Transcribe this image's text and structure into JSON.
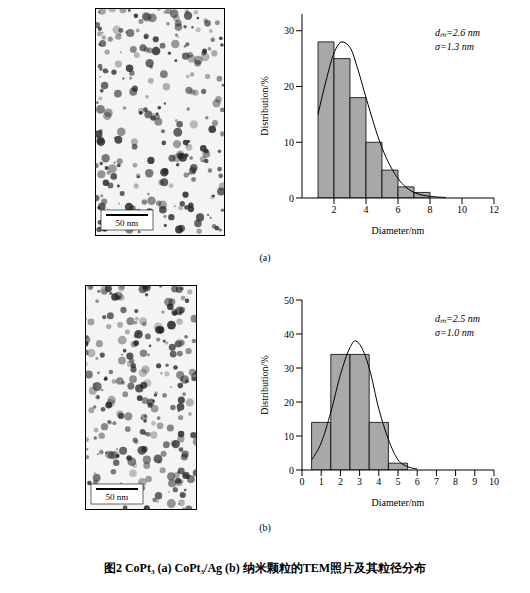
{
  "caption": "图2 CoPt₃ (a) CoPt₃/Ag (b) 纳米颗粒的TEM照片及其粒径分布",
  "chart_data": [
    {
      "type": "histogram",
      "label": "(a)",
      "xlabel": "Diameter/nm",
      "ylabel": "Distribution/%",
      "annotations": [
        "dₘ=2.6 nm",
        "σ=1.3 nm"
      ],
      "image_scale_bar": "50 nm",
      "bins": [
        1,
        2,
        3,
        4,
        5,
        6,
        7,
        8
      ],
      "counts": [
        28,
        25,
        18,
        10,
        5,
        2,
        1
      ],
      "fit": {
        "x": [
          1,
          1.5,
          2,
          2.5,
          3,
          3.5,
          4,
          5,
          6,
          7,
          8,
          9
        ],
        "values": [
          15,
          21,
          26,
          28,
          27,
          23,
          18,
          9,
          3.5,
          1,
          0.3,
          0.1
        ]
      },
      "xlim": [
        0,
        12
      ],
      "xticks": [
        2,
        4,
        6,
        8,
        10,
        12
      ],
      "ylim": [
        0,
        33
      ],
      "yticks": [
        0,
        10,
        20,
        30
      ]
    },
    {
      "type": "histogram",
      "label": "(b)",
      "xlabel": "Diameter/nm",
      "ylabel": "Distribution/%",
      "annotations": [
        "dₘ=2.5 nm",
        "σ=1.0 nm"
      ],
      "image_scale_bar": "50 nm",
      "bins": [
        0.5,
        1.5,
        2.5,
        3.5,
        4.5,
        5.5
      ],
      "counts": [
        14,
        34,
        34,
        14,
        2
      ],
      "fit": {
        "x": [
          0.5,
          1,
          1.5,
          2,
          2.5,
          2.75,
          3,
          3.5,
          4,
          4.5,
          5,
          5.5,
          6
        ],
        "values": [
          3,
          8,
          17,
          28,
          36,
          38,
          37,
          30,
          18,
          9,
          3,
          1,
          0.3
        ]
      },
      "xlim": [
        0,
        10
      ],
      "xticks": [
        0,
        1,
        2,
        3,
        4,
        5,
        6,
        7,
        8,
        9,
        10
      ],
      "ylim": [
        0,
        50
      ],
      "yticks": [
        0,
        10,
        20,
        30,
        40,
        50
      ]
    }
  ]
}
